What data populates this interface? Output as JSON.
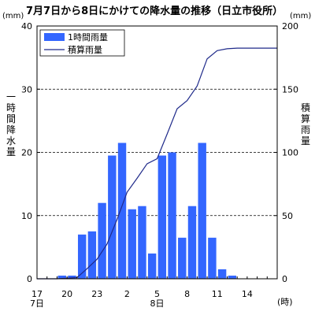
{
  "chart_data": {
    "type": "bar+line",
    "title": "7月7日から8日にかけての降水量の推移（日立市役所）",
    "left_unit": "(mm)",
    "right_unit": "(mm)",
    "ylabel_left": "一時間降水量",
    "ylabel_right": "積算雨量",
    "x_unit": "(時)",
    "ylim_left": [
      0,
      40
    ],
    "ylim_right": [
      0,
      200
    ],
    "yticks_left": [
      0,
      10,
      20,
      30,
      40
    ],
    "yticks_right": [
      0,
      50,
      100,
      150,
      200
    ],
    "grid": "dashed horizontal",
    "legend_position": "top-left",
    "hours": [
      17,
      18,
      19,
      20,
      21,
      22,
      23,
      0,
      1,
      2,
      3,
      4,
      5,
      6,
      7,
      8,
      9,
      10,
      11,
      12,
      13,
      14,
      15,
      16
    ],
    "x_tick_labels": [
      {
        "hour": 17,
        "label": "17"
      },
      {
        "hour": 20,
        "label": "20"
      },
      {
        "hour": 23,
        "label": "23"
      },
      {
        "hour": 2,
        "label": "2"
      },
      {
        "hour": 5,
        "label": "5"
      },
      {
        "hour": 8,
        "label": "8"
      },
      {
        "hour": 11,
        "label": "11"
      },
      {
        "hour": 14,
        "label": "14"
      }
    ],
    "date_labels": [
      {
        "hour": 17,
        "label": "7日"
      },
      {
        "hour": 5,
        "label": "8日"
      }
    ],
    "series": [
      {
        "name": "1時間雨量",
        "kind": "bar",
        "color": "#3366ff",
        "values": [
          0,
          0,
          0.5,
          0.5,
          7,
          7.5,
          12,
          19.5,
          21.5,
          11,
          11.5,
          4,
          19.5,
          20,
          6.5,
          11.5,
          21.5,
          6.5,
          1.5,
          0.5,
          0,
          0,
          0,
          0
        ]
      },
      {
        "name": "積算雨量",
        "kind": "line",
        "color": "#1f2a8a",
        "values": [
          0,
          0,
          0.5,
          1,
          8,
          15.5,
          27.5,
          47,
          68.5,
          79.5,
          91,
          95,
          114.5,
          134.5,
          141,
          152.5,
          174,
          180.5,
          182,
          182.5,
          182.5,
          182.5,
          182.5,
          182.5
        ]
      }
    ]
  }
}
